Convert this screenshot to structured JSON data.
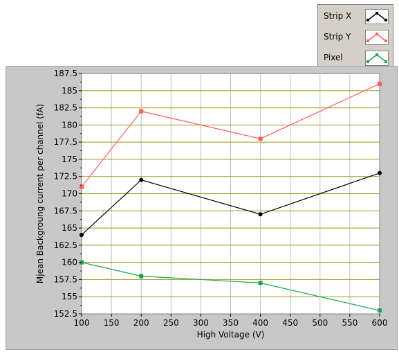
{
  "chart_data": {
    "type": "line",
    "title": "",
    "xlabel": "High Voltage (V)",
    "ylabel": "Mjean Backgroung current per channel (fA)",
    "x": [
      100,
      200,
      400,
      600
    ],
    "xlim": [
      100,
      600
    ],
    "ylim": [
      152.5,
      187.5
    ],
    "xticks": [
      "100",
      "150",
      "200",
      "250",
      "300",
      "350",
      "400",
      "450",
      "500",
      "550",
      "600"
    ],
    "yticks": [
      "152.5",
      "155",
      "157.5",
      "160",
      "162.5",
      "165",
      "167.5",
      "170",
      "172.5",
      "175",
      "177.5",
      "180",
      "182.5",
      "185",
      "187.5"
    ],
    "grid": true,
    "legend_position": "top-right",
    "series": [
      {
        "name": "Strip X",
        "color": "#000000",
        "values": [
          164,
          172,
          167,
          173
        ]
      },
      {
        "name": "Strip Y",
        "color": "#ff5a5a",
        "values": [
          171,
          182,
          178,
          186
        ]
      },
      {
        "name": "Pixel",
        "color": "#1aa84a",
        "values": [
          160,
          158,
          157,
          153
        ]
      }
    ]
  },
  "colors": {
    "plot_background": "#ffffff",
    "grid_major_y": "#9a9a1a",
    "grid_x": "#c0c0c0",
    "panel": "#c8c8c8"
  }
}
